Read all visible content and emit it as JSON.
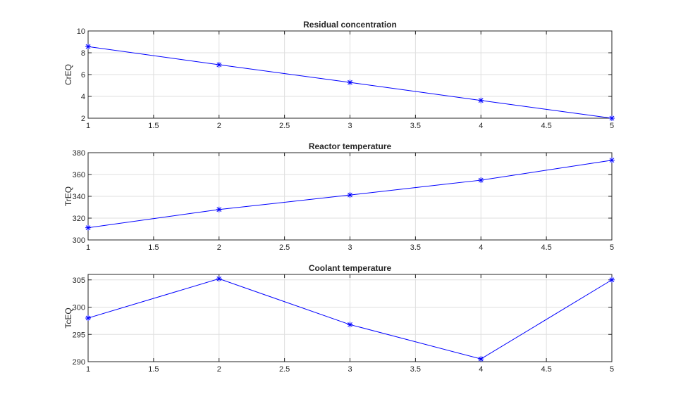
{
  "chart_data": [
    {
      "type": "line",
      "title": "Residual concentration",
      "xlabel": "",
      "ylabel": "CrEQ",
      "xlim": [
        1,
        5
      ],
      "ylim": [
        2,
        10
      ],
      "xticks": [
        1,
        1.5,
        2,
        2.5,
        3,
        3.5,
        4,
        4.5,
        5
      ],
      "yticks": [
        2,
        4,
        6,
        8,
        10
      ],
      "grid": true,
      "marker": "*",
      "color": "#0000ff",
      "x": [
        1,
        2,
        3,
        4,
        5
      ],
      "y": [
        8.57,
        6.9,
        5.28,
        3.63,
        2.0
      ]
    },
    {
      "type": "line",
      "title": "Reactor temperature",
      "xlabel": "",
      "ylabel": "TrEQ",
      "xlim": [
        1,
        5
      ],
      "ylim": [
        300,
        380
      ],
      "xticks": [
        1,
        1.5,
        2,
        2.5,
        3,
        3.5,
        4,
        4.5,
        5
      ],
      "yticks": [
        300,
        320,
        340,
        360,
        380
      ],
      "grid": true,
      "marker": "*",
      "color": "#0000ff",
      "x": [
        1,
        2,
        3,
        4,
        5
      ],
      "y": [
        311.2,
        327.9,
        341.2,
        354.8,
        373.1
      ]
    },
    {
      "type": "line",
      "title": "Coolant temperature",
      "xlabel": "",
      "ylabel": "TcEQ",
      "xlim": [
        1,
        5
      ],
      "ylim": [
        290,
        306
      ],
      "xticks": [
        1,
        1.5,
        2,
        2.5,
        3,
        3.5,
        4,
        4.5,
        5
      ],
      "yticks": [
        290,
        295,
        300,
        305
      ],
      "grid": true,
      "marker": "*",
      "color": "#0000ff",
      "x": [
        1,
        2,
        3,
        4,
        5
      ],
      "y": [
        298.0,
        305.2,
        296.8,
        290.5,
        305.0
      ]
    }
  ]
}
